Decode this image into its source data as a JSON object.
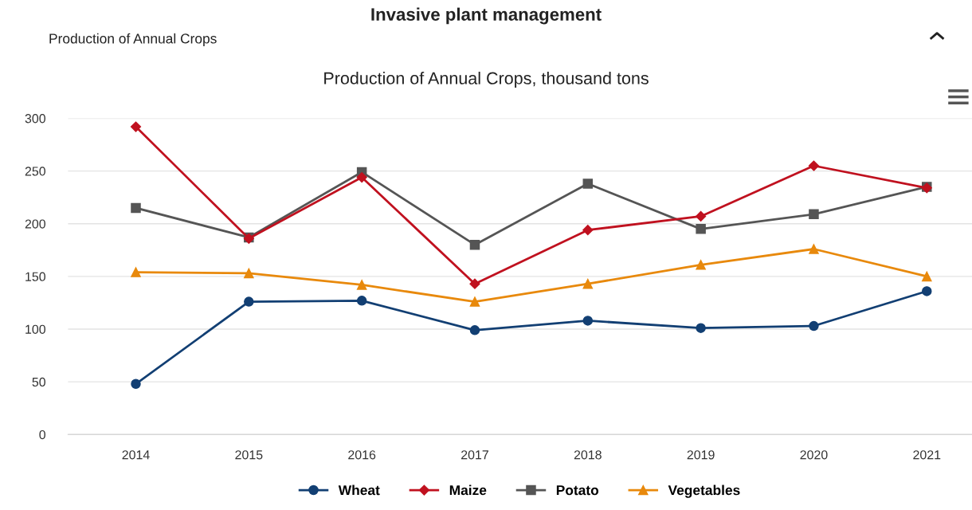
{
  "chart_data": {
    "type": "line",
    "title": "Production of Annual Crops, thousand tons",
    "annotations": [
      "Invasive plant management",
      "Production of Annual Crops"
    ],
    "categories": [
      "2014",
      "2015",
      "2016",
      "2017",
      "2018",
      "2019",
      "2020",
      "2021"
    ],
    "series": [
      {
        "name": "Wheat",
        "color": "#123f73",
        "marker": "circle",
        "values": [
          48,
          126,
          127,
          99,
          108,
          101,
          103,
          136
        ]
      },
      {
        "name": "Maize",
        "color": "#c0111f",
        "marker": "diamond",
        "values": [
          292,
          186,
          244,
          143,
          194,
          207,
          255,
          234
        ]
      },
      {
        "name": "Potato",
        "color": "#555555",
        "marker": "square",
        "values": [
          215,
          187,
          249,
          180,
          238,
          195,
          209,
          235
        ]
      },
      {
        "name": "Vegetables",
        "color": "#e8890c",
        "marker": "triangle",
        "values": [
          154,
          153,
          142,
          126,
          143,
          161,
          176,
          150
        ]
      }
    ],
    "ylim": [
      0,
      300
    ],
    "yticks": [
      0,
      50,
      100,
      150,
      200,
      250,
      300
    ],
    "grid": "y",
    "legend": "bottom"
  }
}
